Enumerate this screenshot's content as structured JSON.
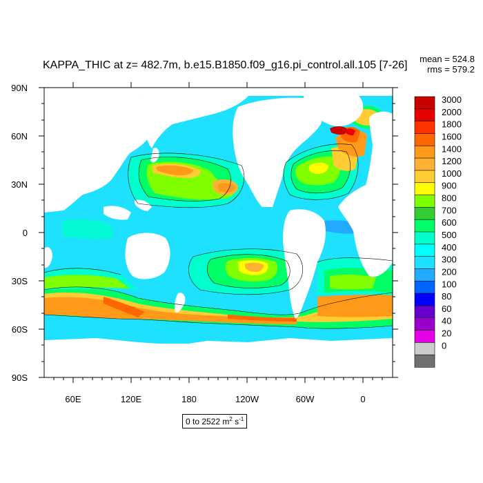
{
  "title": "KAPPA_THIC at z= 482.7m, b.e15.B1850.f09_g16.pi_control.all.105 [7-26]",
  "stats": {
    "mean": "mean = 524.8",
    "rms": "rms = 579.2"
  },
  "range": {
    "text": "0 to 2522 m",
    "sup1": "2",
    "mid": " s",
    "sup2": "-1"
  },
  "map": {
    "lat_labels": [
      "90N",
      "60N",
      "30N",
      "0",
      "30S",
      "60S",
      "90S"
    ],
    "lon_labels": [
      "60E",
      "120E",
      "180",
      "120W",
      "60W",
      "0"
    ],
    "ocean_base_color": "#1ee1ff",
    "land_color": "#ffffff"
  },
  "colorbar": {
    "labels": [
      "3000",
      "2000",
      "1800",
      "1600",
      "1400",
      "1200",
      "1000",
      "900",
      "800",
      "700",
      "600",
      "500",
      "400",
      "300",
      "200",
      "100",
      "80",
      "60",
      "40",
      "20",
      "0"
    ],
    "colors": [
      "#c80000",
      "#e60000",
      "#ff3300",
      "#ff6600",
      "#ff9919",
      "#ffb133",
      "#ffcc33",
      "#ffff00",
      "#80ff00",
      "#33cc33",
      "#00ff66",
      "#00ffcc",
      "#00ffff",
      "#1ee1ff",
      "#22aaff",
      "#0066ff",
      "#0000ff",
      "#6600cc",
      "#9900cc",
      "#e600e6",
      "#cccccc",
      "#707070"
    ]
  }
}
